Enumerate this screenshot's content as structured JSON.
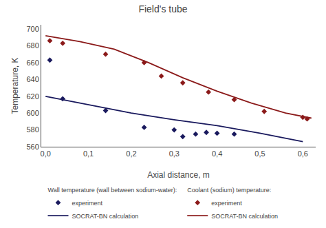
{
  "chart_data": {
    "type": "line",
    "title": "Field's tube",
    "x_label": "Axial distance, m",
    "y_label": "Temperature, K",
    "xlim": [
      -0.01,
      0.63
    ],
    "ylim": [
      560,
      705
    ],
    "xticks": [
      {
        "value": 0.0,
        "label": "0,0"
      },
      {
        "value": 0.1,
        "label": "0,1"
      },
      {
        "value": 0.2,
        "label": "0,2"
      },
      {
        "value": 0.3,
        "label": "0,3"
      },
      {
        "value": 0.4,
        "label": "0,4"
      },
      {
        "value": 0.5,
        "label": "0,5"
      },
      {
        "value": 0.6,
        "label": "0,6"
      }
    ],
    "yticks": [
      560,
      580,
      600,
      620,
      640,
      660,
      680,
      700
    ],
    "grid": false,
    "legend": "bottom",
    "series": [
      {
        "name": "experiment",
        "group": "Wall temperature (wall between sodium-water):",
        "type": "scatter",
        "marker": "diamond",
        "color": "#1a1a5e",
        "x": [
          0.01,
          0.04,
          0.14,
          0.23,
          0.3,
          0.32,
          0.35,
          0.375,
          0.4,
          0.44
        ],
        "values": [
          663,
          617,
          603,
          583,
          580,
          572,
          575,
          577,
          576,
          575
        ]
      },
      {
        "name": "SOCRAT-BN calculation",
        "group": "Wall temperature (wall between sodium-water):",
        "type": "line",
        "line_style": "solid",
        "color": "#1a1a5e",
        "x": [
          0.0,
          0.1,
          0.2,
          0.3,
          0.4,
          0.5,
          0.6
        ],
        "values": [
          620,
          610,
          600,
          592,
          585,
          576,
          566
        ]
      },
      {
        "name": "experiment",
        "group": "Coolant (sodium) temperature:",
        "type": "scatter",
        "marker": "diamond",
        "color": "#8b1a1a",
        "x": [
          0.01,
          0.04,
          0.14,
          0.23,
          0.27,
          0.32,
          0.38,
          0.44,
          0.51,
          0.6,
          0.61
        ],
        "values": [
          686,
          683,
          670,
          660,
          644,
          636,
          625,
          616,
          602,
          595,
          593
        ]
      },
      {
        "name": "SOCRAT-BN calculation",
        "group": "Coolant (sodium) temperature:",
        "type": "line",
        "line_style": "solid",
        "color": "#8b1a1a",
        "x": [
          0.0,
          0.08,
          0.16,
          0.24,
          0.32,
          0.4,
          0.48,
          0.56,
          0.62
        ],
        "values": [
          692,
          685,
          676,
          660,
          642,
          626,
          612,
          600,
          594
        ]
      }
    ]
  }
}
